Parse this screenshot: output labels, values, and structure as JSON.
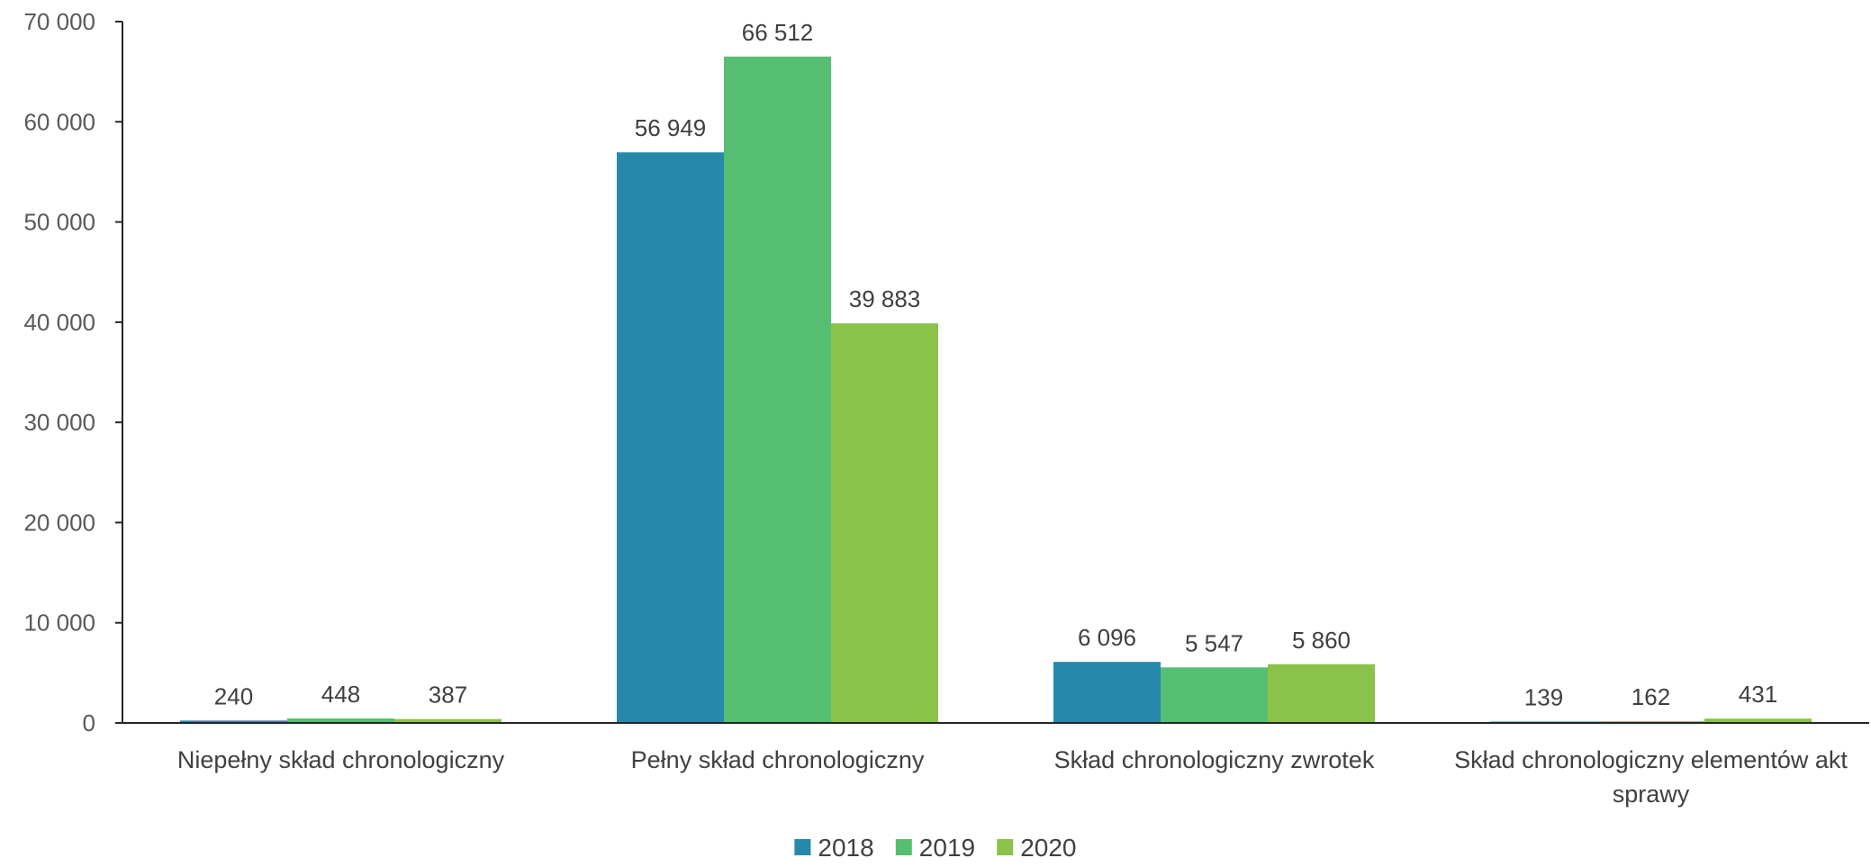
{
  "chart_data": {
    "type": "bar",
    "categories": [
      [
        "Niepełny skład chronologiczny"
      ],
      [
        "Pełny skład chronologiczny"
      ],
      [
        "Skład chronologiczny zwrotek"
      ],
      [
        "Skład chronologiczny elementów akt",
        "sprawy"
      ]
    ],
    "series": [
      {
        "name": "2018",
        "color": "#2688AA",
        "values": [
          240,
          56949,
          6096,
          139
        ],
        "labels": [
          "240",
          "56 949",
          "6 096",
          "139"
        ]
      },
      {
        "name": "2019",
        "color": "#55BE72",
        "values": [
          448,
          66512,
          5547,
          162
        ],
        "labels": [
          "448",
          "66 512",
          "5 547",
          "162"
        ]
      },
      {
        "name": "2020",
        "color": "#8BC24A",
        "values": [
          387,
          39883,
          5860,
          431
        ],
        "labels": [
          "387",
          "39 883",
          "5 860",
          "431"
        ]
      }
    ],
    "y_ticks": [
      "0",
      "10 000",
      "20 000",
      "30 000",
      "40 000",
      "50 000",
      "60 000",
      "70 000"
    ],
    "ylim": [
      0,
      70000
    ],
    "legend_position": "bottom",
    "grid": false
  }
}
